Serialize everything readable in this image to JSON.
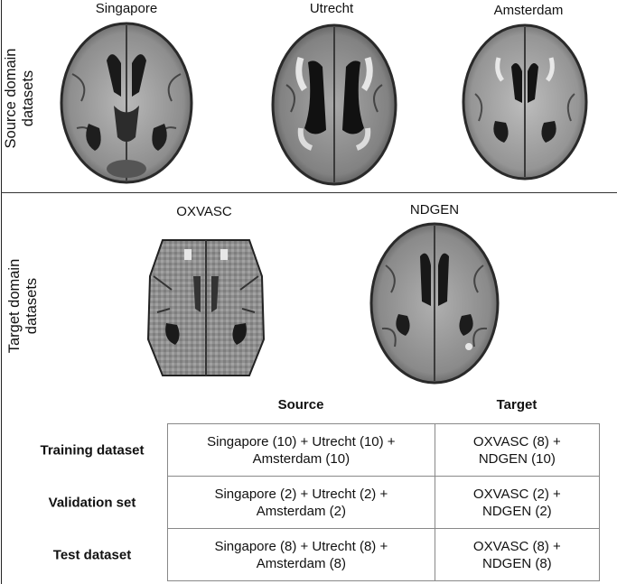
{
  "groups": {
    "source_label": "Source domain\ndatasets",
    "target_label": "Target domain\ndatasets"
  },
  "images": {
    "singapore": "Singapore",
    "utrecht": "Utrecht",
    "amsterdam": "Amsterdam",
    "oxvasc": "OXVASC",
    "ndgen": "NDGEN"
  },
  "table": {
    "col_source": "Source",
    "col_target": "Target",
    "rows": [
      {
        "label": "Training dataset",
        "source": "Singapore (10) + Utrecht (10) +\nAmsterdam (10)",
        "target": "OXVASC (8) +\nNDGEN (10)"
      },
      {
        "label": "Validation set",
        "source": "Singapore (2) + Utrecht (2) +\nAmsterdam (2)",
        "target": "OXVASC (2) +\nNDGEN (2)"
      },
      {
        "label": "Test dataset",
        "source": "Singapore (8) + Utrecht (8) +\nAmsterdam (8)",
        "target": "OXVASC (8) +\nNDGEN (8)"
      }
    ]
  }
}
